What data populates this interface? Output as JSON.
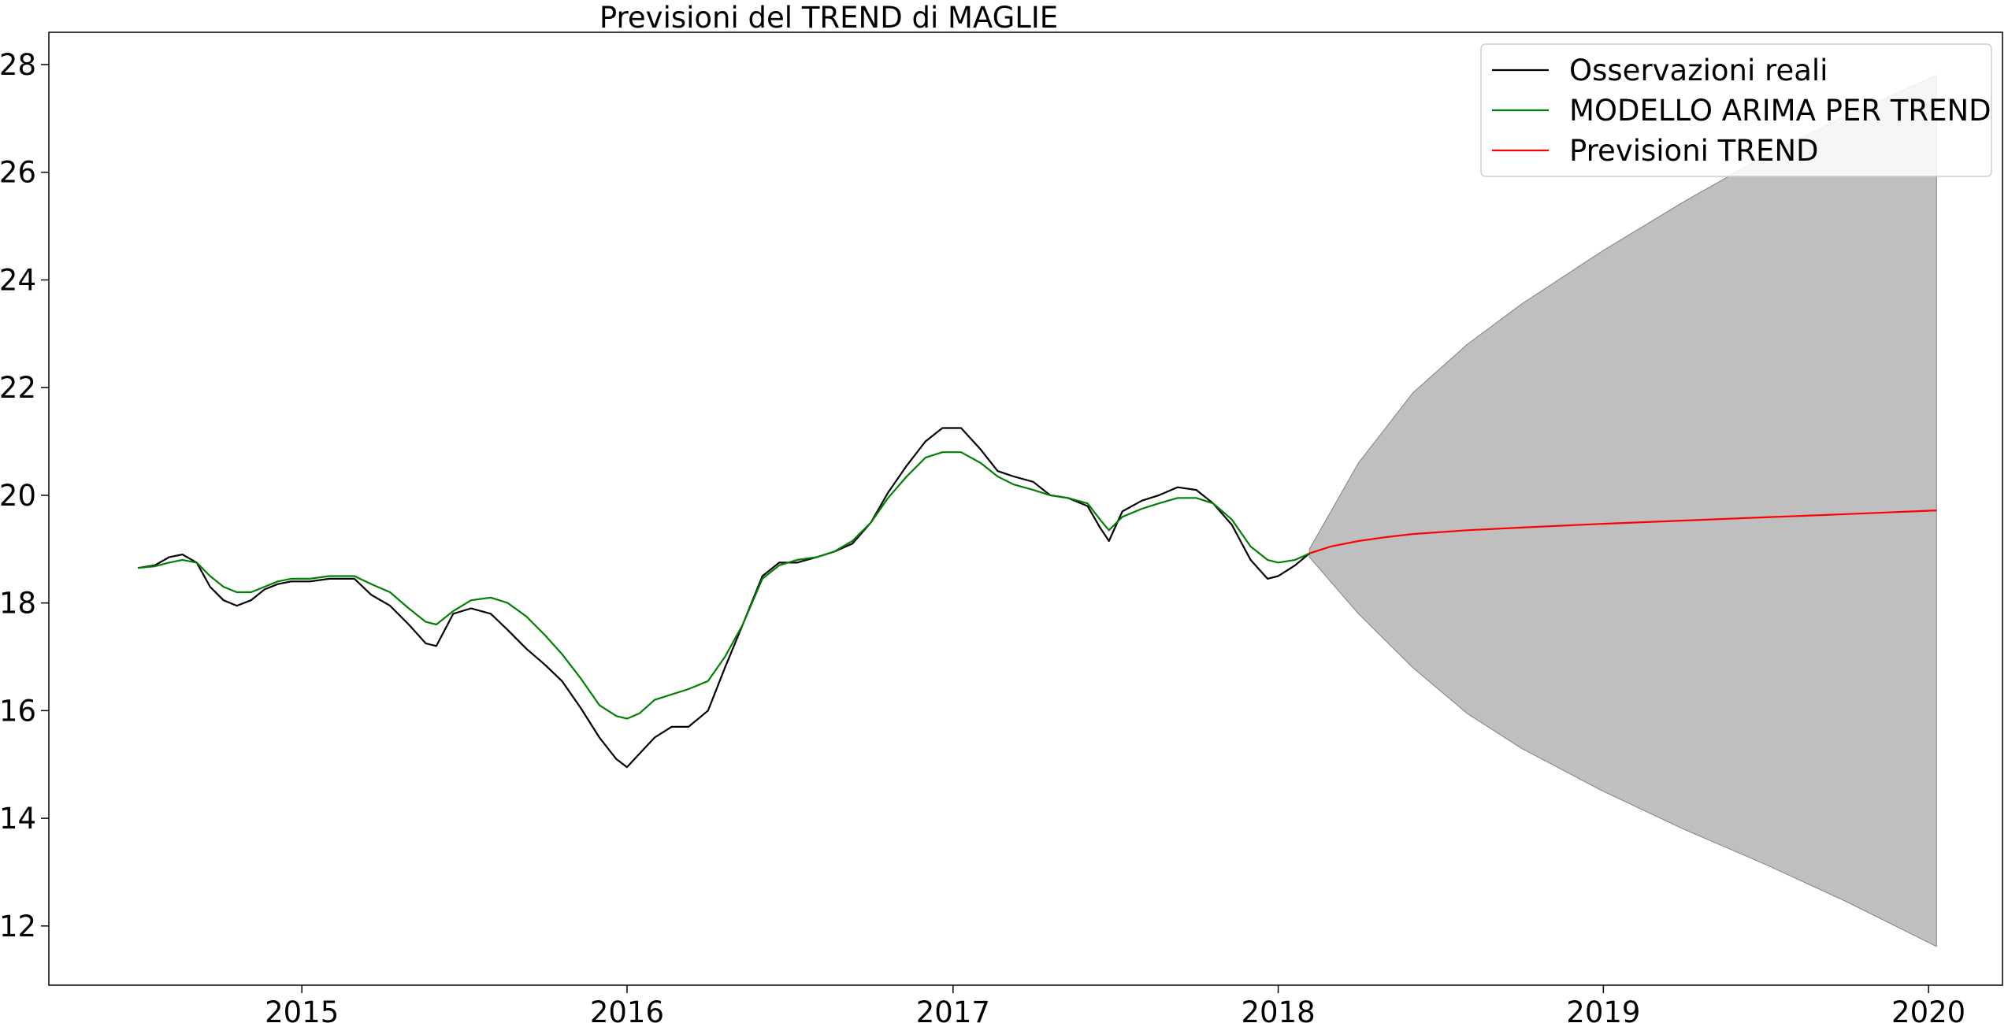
{
  "chart_data": {
    "type": "line",
    "title": "Previsioni del TREND di MAGLIE",
    "xlabel": "",
    "ylabel": "",
    "xlim": [
      "2014-03-23",
      "2020-03-24"
    ],
    "ylim": [
      10.9,
      28.6
    ],
    "x_ticks": [
      "2015",
      "2016",
      "2017",
      "2018",
      "2019",
      "2020"
    ],
    "y_ticks": [
      "12",
      "14",
      "16",
      "18",
      "20",
      "22",
      "24",
      "26",
      "28"
    ],
    "grid": false,
    "legend_position": "top-right",
    "series": [
      {
        "name": "Osservazioni reali",
        "color": "#000000",
        "x": [
          "2014-07-01",
          "2014-07-20",
          "2014-08-05",
          "2014-08-20",
          "2014-09-05",
          "2014-09-20",
          "2014-10-05",
          "2014-10-20",
          "2014-11-05",
          "2014-11-20",
          "2014-12-05",
          "2014-12-20",
          "2015-01-10",
          "2015-02-01",
          "2015-03-01",
          "2015-03-20",
          "2015-04-10",
          "2015-05-01",
          "2015-05-20",
          "2015-06-01",
          "2015-06-20",
          "2015-07-10",
          "2015-08-01",
          "2015-08-20",
          "2015-09-10",
          "2015-10-01",
          "2015-10-20",
          "2015-11-10",
          "2015-12-01",
          "2015-12-20",
          "2016-01-01",
          "2016-01-15",
          "2016-02-01",
          "2016-02-20",
          "2016-03-10",
          "2016-04-01",
          "2016-04-20",
          "2016-05-10",
          "2016-06-01",
          "2016-06-20",
          "2016-07-10",
          "2016-08-01",
          "2016-08-20",
          "2016-09-10",
          "2016-10-01",
          "2016-10-20",
          "2016-11-10",
          "2016-12-01",
          "2016-12-20",
          "2017-01-10",
          "2017-02-01",
          "2017-02-20",
          "2017-03-10",
          "2017-04-01",
          "2017-04-20",
          "2017-05-10",
          "2017-06-01",
          "2017-06-15",
          "2017-06-25",
          "2017-07-10",
          "2017-08-01",
          "2017-08-20",
          "2017-09-10",
          "2017-10-01",
          "2017-10-20",
          "2017-11-10",
          "2017-12-01",
          "2017-12-20",
          "2018-01-01",
          "2018-01-20",
          "2018-02-05"
        ],
        "values": [
          18.65,
          18.7,
          18.85,
          18.9,
          18.75,
          18.3,
          18.05,
          17.95,
          18.05,
          18.25,
          18.35,
          18.4,
          18.4,
          18.45,
          18.45,
          18.15,
          17.95,
          17.6,
          17.25,
          17.2,
          17.8,
          17.9,
          17.8,
          17.5,
          17.15,
          16.85,
          16.55,
          16.05,
          15.5,
          15.1,
          14.95,
          15.2,
          15.5,
          15.7,
          15.7,
          16.0,
          16.8,
          17.6,
          18.5,
          18.75,
          18.75,
          18.85,
          18.95,
          19.1,
          19.5,
          20.05,
          20.55,
          21.0,
          21.25,
          21.25,
          20.85,
          20.45,
          20.35,
          20.25,
          20.0,
          19.95,
          19.8,
          19.4,
          19.15,
          19.7,
          19.9,
          20.0,
          20.15,
          20.1,
          19.85,
          19.45,
          18.8,
          18.45,
          18.5,
          18.7,
          18.92
        ]
      },
      {
        "name": "MODELLO ARIMA PER TREND",
        "color": "#008000",
        "x": [
          "2014-07-01",
          "2014-07-20",
          "2014-08-05",
          "2014-08-20",
          "2014-09-05",
          "2014-09-20",
          "2014-10-05",
          "2014-10-20",
          "2014-11-05",
          "2014-11-20",
          "2014-12-05",
          "2014-12-20",
          "2015-01-10",
          "2015-02-01",
          "2015-03-01",
          "2015-03-20",
          "2015-04-10",
          "2015-05-01",
          "2015-05-20",
          "2015-06-01",
          "2015-06-20",
          "2015-07-10",
          "2015-08-01",
          "2015-08-20",
          "2015-09-10",
          "2015-10-01",
          "2015-10-20",
          "2015-11-10",
          "2015-12-01",
          "2015-12-20",
          "2016-01-01",
          "2016-01-15",
          "2016-02-01",
          "2016-02-20",
          "2016-03-10",
          "2016-04-01",
          "2016-04-20",
          "2016-05-10",
          "2016-06-01",
          "2016-06-20",
          "2016-07-10",
          "2016-08-01",
          "2016-08-20",
          "2016-09-10",
          "2016-10-01",
          "2016-10-20",
          "2016-11-10",
          "2016-12-01",
          "2016-12-20",
          "2017-01-10",
          "2017-02-01",
          "2017-02-20",
          "2017-03-10",
          "2017-04-01",
          "2017-04-20",
          "2017-05-10",
          "2017-06-01",
          "2017-06-15",
          "2017-06-25",
          "2017-07-10",
          "2017-08-01",
          "2017-08-20",
          "2017-09-10",
          "2017-10-01",
          "2017-10-20",
          "2017-11-10",
          "2017-12-01",
          "2017-12-20",
          "2018-01-01",
          "2018-01-20",
          "2018-02-05"
        ],
        "values": [
          18.65,
          18.68,
          18.75,
          18.8,
          18.75,
          18.5,
          18.3,
          18.2,
          18.2,
          18.3,
          18.4,
          18.45,
          18.45,
          18.5,
          18.5,
          18.35,
          18.2,
          17.9,
          17.65,
          17.6,
          17.85,
          18.05,
          18.1,
          18.0,
          17.75,
          17.4,
          17.05,
          16.6,
          16.1,
          15.9,
          15.85,
          15.95,
          16.2,
          16.3,
          16.4,
          16.55,
          17.0,
          17.6,
          18.45,
          18.7,
          18.8,
          18.85,
          18.95,
          19.15,
          19.5,
          19.95,
          20.35,
          20.7,
          20.8,
          20.8,
          20.6,
          20.35,
          20.2,
          20.1,
          20.0,
          19.95,
          19.85,
          19.55,
          19.35,
          19.6,
          19.75,
          19.85,
          19.95,
          19.95,
          19.85,
          19.55,
          19.05,
          18.8,
          18.75,
          18.8,
          18.92
        ]
      },
      {
        "name": "Previsioni TREND",
        "color": "#ff0000",
        "x": [
          "2018-02-05",
          "2018-03-01",
          "2018-04-01",
          "2018-05-01",
          "2018-06-01",
          "2018-08-01",
          "2018-10-01",
          "2019-01-01",
          "2019-04-01",
          "2019-07-01",
          "2019-10-01",
          "2020-01-10"
        ],
        "values": [
          18.92,
          19.05,
          19.15,
          19.22,
          19.28,
          19.35,
          19.4,
          19.47,
          19.53,
          19.59,
          19.65,
          19.72
        ]
      }
    ],
    "confidence_band": {
      "color": "#bfbfbf",
      "x": [
        "2018-02-05",
        "2018-04-01",
        "2018-06-01",
        "2018-08-01",
        "2018-10-01",
        "2019-01-01",
        "2019-04-01",
        "2019-07-01",
        "2019-10-01",
        "2020-01-10"
      ],
      "lower": [
        18.85,
        17.8,
        16.8,
        15.95,
        15.3,
        14.5,
        13.8,
        13.15,
        12.45,
        11.62
      ],
      "upper": [
        19.0,
        20.6,
        21.9,
        22.8,
        23.55,
        24.55,
        25.45,
        26.3,
        27.05,
        27.8
      ]
    }
  }
}
